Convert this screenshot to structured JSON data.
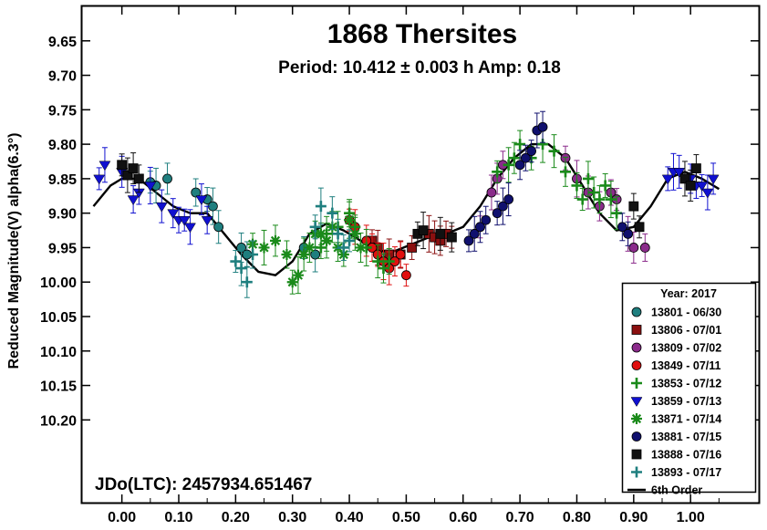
{
  "chart_data": {
    "type": "scatter",
    "title": "1868 Thersites",
    "subtitle": "Period: 10.412 ± 0.003 h   Amp: 0.18",
    "ylabel": "Reduced Magnitude(V) alpha(6.3°)",
    "xlabel": "",
    "xlim": [
      -0.07,
      1.12
    ],
    "ylim": [
      9.6,
      10.32
    ],
    "y_inverted": true,
    "x_ticks": [
      "0.00",
      "0.10",
      "0.20",
      "0.30",
      "0.40",
      "0.50",
      "0.60",
      "0.70",
      "0.80",
      "0.90",
      "1.00"
    ],
    "y_ticks": [
      "9.65",
      "9.70",
      "9.75",
      "9.80",
      "9.85",
      "9.90",
      "9.95",
      "10.00",
      "10.05",
      "10.10",
      "10.15",
      "10.20"
    ],
    "annotation": "JDo(LTC): 2457934.651467",
    "grid": false,
    "legend_position": "bottom-right",
    "legend_title": "Year: 2017",
    "series": [
      {
        "name": "13801 - 06/30",
        "marker": "circle",
        "color": "#1f7f7f",
        "x": [
          0.05,
          0.06,
          0.08,
          0.13,
          0.15,
          0.16,
          0.17,
          0.21,
          0.22,
          0.32,
          0.34
        ],
        "y": [
          9.855,
          9.86,
          9.85,
          9.87,
          9.88,
          9.89,
          9.92,
          9.95,
          9.96,
          9.95,
          9.96
        ]
      },
      {
        "name": "13806 - 07/01",
        "marker": "square",
        "color": "#8b1010",
        "x": [
          0.44,
          0.45,
          0.47,
          0.49,
          0.51,
          0.54,
          0.55,
          0.56,
          0.57,
          0.58
        ],
        "y": [
          9.94,
          9.95,
          9.96,
          9.96,
          9.95,
          9.93,
          9.935,
          9.94,
          9.93,
          9.935
        ]
      },
      {
        "name": "13809 - 07/02",
        "marker": "circle",
        "color": "#8b2b8b",
        "x": [
          0.63,
          0.65,
          0.66,
          0.67,
          0.78,
          0.8,
          0.82,
          0.84,
          0.86,
          0.87,
          0.89,
          0.9,
          0.92
        ],
        "y": [
          9.92,
          9.87,
          9.85,
          9.83,
          9.82,
          9.85,
          9.87,
          9.89,
          9.87,
          9.88,
          9.93,
          9.95,
          9.95
        ]
      },
      {
        "name": "13849 - 07/11",
        "marker": "circle",
        "color": "#e01010",
        "x": [
          0.4,
          0.41,
          0.43,
          0.44,
          0.45,
          0.46,
          0.47,
          0.48,
          0.49,
          0.5
        ],
        "y": [
          9.91,
          9.92,
          9.94,
          9.95,
          9.96,
          9.97,
          9.98,
          9.97,
          9.96,
          9.99
        ]
      },
      {
        "name": "13853 - 07/12",
        "marker": "plus",
        "color": "#1a8a1a",
        "x": [
          0.35,
          0.36,
          0.38,
          0.4,
          0.41,
          0.43,
          0.45,
          0.46,
          0.47,
          0.66,
          0.68,
          0.69,
          0.7,
          0.72,
          0.74,
          0.76,
          0.78,
          0.8,
          0.81,
          0.82,
          0.83,
          0.84,
          0.85,
          0.86,
          0.87
        ],
        "y": [
          9.95,
          9.93,
          9.92,
          9.9,
          9.92,
          9.95,
          9.97,
          9.98,
          9.97,
          9.84,
          9.83,
          9.82,
          9.8,
          9.82,
          9.8,
          9.81,
          9.84,
          9.86,
          9.88,
          9.85,
          9.87,
          9.88,
          9.86,
          9.88,
          9.9
        ]
      },
      {
        "name": "13859 - 07/13",
        "marker": "triangle-down",
        "color": "#1010d0",
        "x": [
          -0.04,
          -0.03,
          0.0,
          0.02,
          0.03,
          0.05,
          0.07,
          0.09,
          0.1,
          0.11,
          0.12,
          0.14,
          0.15,
          0.96,
          0.97,
          0.98,
          1.0,
          1.01,
          1.02,
          1.03,
          1.04
        ],
        "y": [
          9.85,
          9.83,
          9.84,
          9.88,
          9.87,
          9.86,
          9.89,
          9.9,
          9.91,
          9.91,
          9.92,
          9.88,
          9.91,
          9.85,
          9.84,
          9.84,
          9.85,
          9.86,
          9.86,
          9.87,
          9.85
        ]
      },
      {
        "name": "13871 - 07/14",
        "marker": "asterisk",
        "color": "#1a8a1a",
        "x": [
          0.23,
          0.25,
          0.27,
          0.29,
          0.3,
          0.31,
          0.32,
          0.33,
          0.34,
          0.35,
          0.36,
          0.37,
          0.38,
          0.39,
          0.4,
          0.41,
          0.42
        ],
        "y": [
          9.945,
          9.95,
          9.94,
          9.96,
          10.0,
          9.99,
          9.96,
          9.95,
          9.93,
          9.93,
          9.94,
          9.92,
          9.95,
          9.96,
          9.91,
          9.93,
          9.95
        ]
      },
      {
        "name": "13881 - 07/15",
        "marker": "circle",
        "color": "#10106e",
        "x": [
          0.61,
          0.62,
          0.63,
          0.64,
          0.66,
          0.67,
          0.68,
          0.7,
          0.71,
          0.72,
          0.73,
          0.74,
          0.88,
          0.89
        ],
        "y": [
          9.94,
          9.93,
          9.92,
          9.91,
          9.9,
          9.89,
          9.88,
          9.83,
          9.82,
          9.81,
          9.78,
          9.775,
          9.92,
          9.93
        ]
      },
      {
        "name": "13888 - 07/16",
        "marker": "square",
        "color": "#111111",
        "x": [
          0.0,
          0.01,
          0.02,
          0.03,
          0.52,
          0.53,
          0.56,
          0.58,
          0.9,
          0.91,
          0.99,
          1.0,
          1.01
        ],
        "y": [
          9.83,
          9.845,
          9.835,
          9.85,
          9.93,
          9.925,
          9.93,
          9.935,
          9.89,
          9.92,
          9.85,
          9.86,
          9.835
        ]
      },
      {
        "name": "13893 - 07/17",
        "marker": "plus",
        "color": "#1f7f7f",
        "x": [
          0.2,
          0.21,
          0.22,
          0.23,
          0.34,
          0.35,
          0.37,
          0.38,
          0.39,
          0.4
        ],
        "y": [
          9.97,
          9.98,
          10.0,
          9.96,
          9.92,
          9.89,
          9.9,
          9.93,
          9.95,
          9.94
        ]
      },
      {
        "name": "6th Order",
        "marker": "line",
        "color": "#000000",
        "x": [
          -0.05,
          -0.02,
          0.0,
          0.03,
          0.06,
          0.09,
          0.12,
          0.15,
          0.18,
          0.21,
          0.24,
          0.27,
          0.3,
          0.33,
          0.36,
          0.39,
          0.42,
          0.45,
          0.48,
          0.51,
          0.54,
          0.57,
          0.6,
          0.63,
          0.66,
          0.69,
          0.72,
          0.75,
          0.78,
          0.81,
          0.84,
          0.87,
          0.9,
          0.93,
          0.96,
          0.99,
          1.02,
          1.05
        ],
        "y": [
          9.89,
          9.86,
          9.85,
          9.85,
          9.87,
          9.89,
          9.9,
          9.9,
          9.93,
          9.96,
          9.985,
          9.99,
          9.97,
          9.93,
          9.915,
          9.925,
          9.94,
          9.955,
          9.955,
          9.945,
          9.935,
          9.93,
          9.92,
          9.89,
          9.85,
          9.82,
          9.8,
          9.8,
          9.82,
          9.86,
          9.9,
          9.925,
          9.92,
          9.89,
          9.85,
          9.84,
          9.85,
          9.865
        ]
      }
    ]
  },
  "colors": {
    "background": "#ffffff",
    "axis": "#000000"
  }
}
